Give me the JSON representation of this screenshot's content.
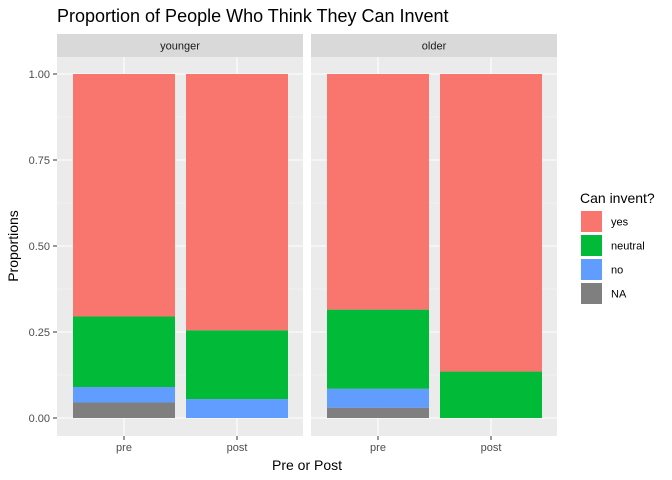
{
  "chart_data": {
    "type": "bar",
    "stacked": true,
    "title": "Proportion of People Who Think They Can Invent",
    "xlabel": "Pre or Post",
    "ylabel": "Proportions",
    "ylim": [
      0,
      1
    ],
    "y_ticks": [
      "0.00",
      "0.25",
      "0.50",
      "0.75",
      "1.00"
    ],
    "y_tick_values": [
      0,
      0.25,
      0.5,
      0.75,
      1.0
    ],
    "grid": true,
    "legend": {
      "title": "Can invent?",
      "position": "right",
      "entries": [
        {
          "key": "yes",
          "label": "yes",
          "color": "#F8766D"
        },
        {
          "key": "neutral",
          "label": "neutral",
          "color": "#00BA38"
        },
        {
          "key": "no",
          "label": "no",
          "color": "#619CFF"
        },
        {
          "key": "NA",
          "label": "NA",
          "color": "#7F7F7F"
        }
      ]
    },
    "stack_order_bottom_to_top": [
      "NA",
      "no",
      "neutral",
      "yes"
    ],
    "facets": [
      {
        "label": "younger",
        "categories": [
          "pre",
          "post"
        ],
        "bars": [
          {
            "category": "pre",
            "values": {
              "NA": 0.045,
              "no": 0.045,
              "neutral": 0.205,
              "yes": 0.705
            }
          },
          {
            "category": "post",
            "values": {
              "NA": 0,
              "no": 0.055,
              "neutral": 0.2,
              "yes": 0.745
            }
          }
        ]
      },
      {
        "label": "older",
        "categories": [
          "pre",
          "post"
        ],
        "bars": [
          {
            "category": "pre",
            "values": {
              "NA": 0.03,
              "no": 0.055,
              "neutral": 0.23,
              "yes": 0.685
            }
          },
          {
            "category": "post",
            "values": {
              "NA": 0,
              "no": 0,
              "neutral": 0.135,
              "yes": 0.865
            }
          }
        ]
      }
    ]
  }
}
